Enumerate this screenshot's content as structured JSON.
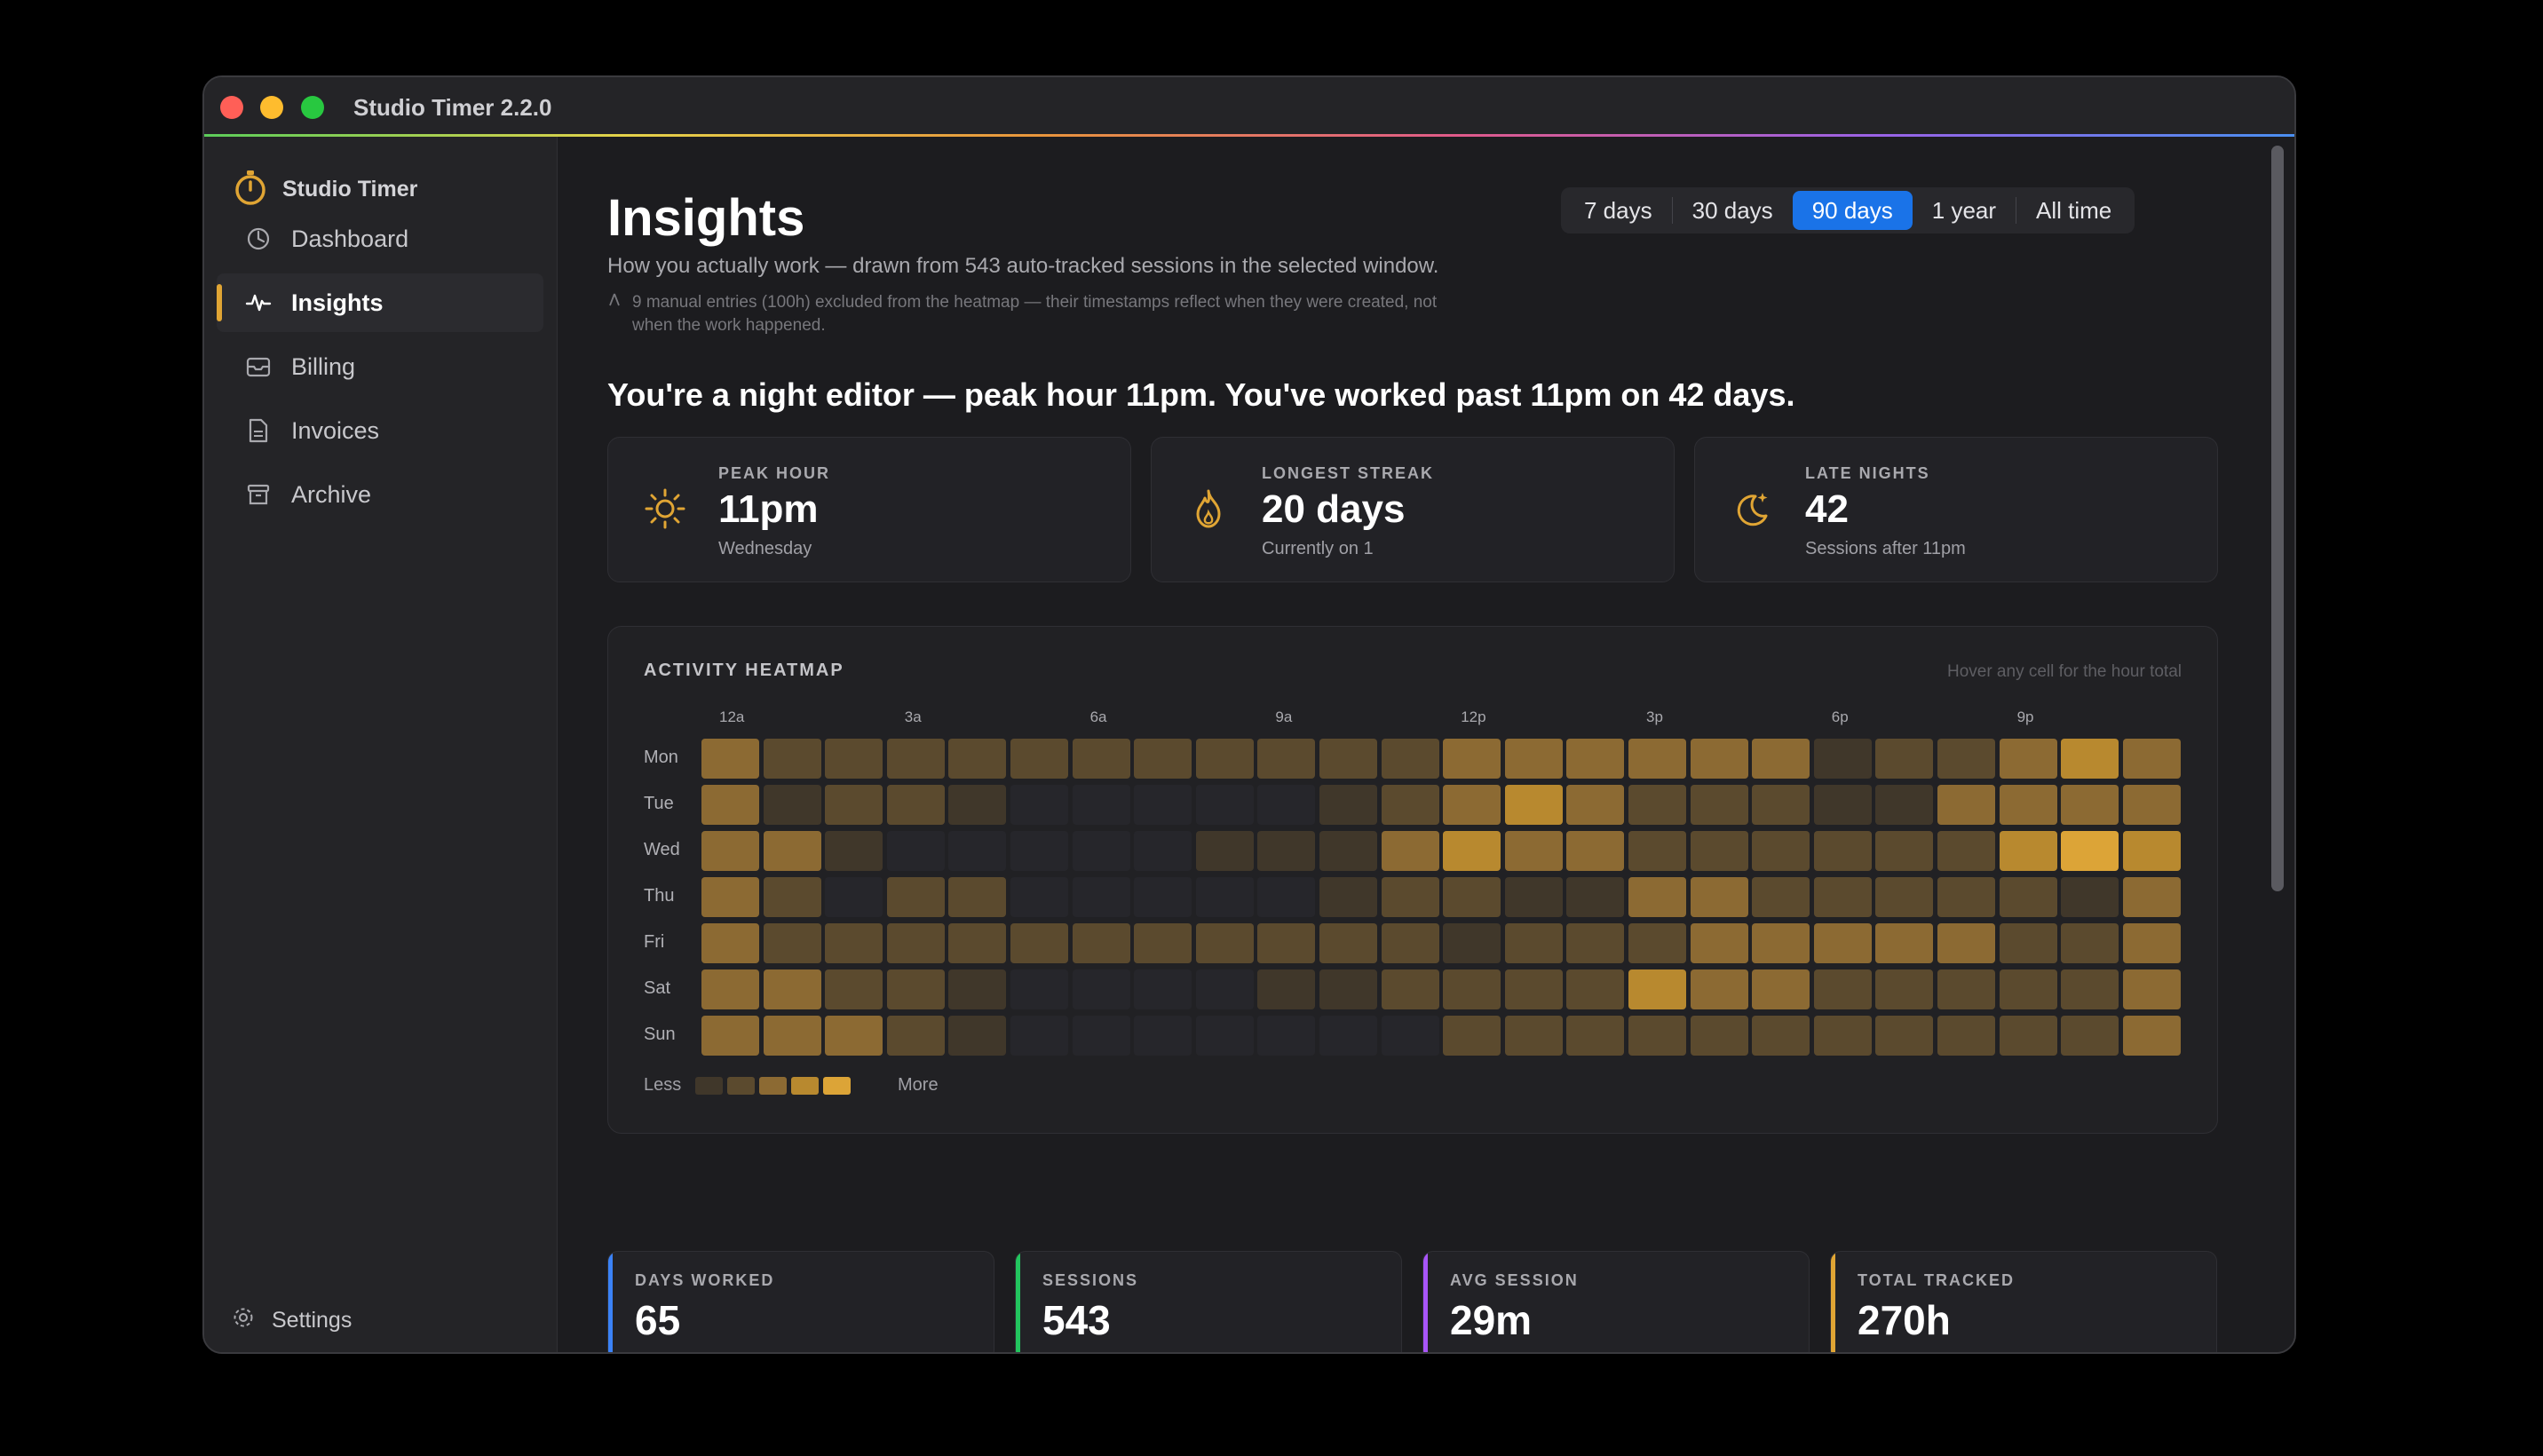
{
  "window": {
    "title": "Studio Timer 2.2.0"
  },
  "sidebar": {
    "brand": "Studio Timer",
    "items": [
      {
        "label": "Dashboard",
        "icon": "dashboard-icon",
        "active": false
      },
      {
        "label": "Insights",
        "icon": "pulse-icon",
        "active": true
      },
      {
        "label": "Billing",
        "icon": "billing-icon",
        "active": false
      },
      {
        "label": "Invoices",
        "icon": "document-icon",
        "active": false
      },
      {
        "label": "Archive",
        "icon": "archive-icon",
        "active": false
      }
    ],
    "settings_label": "Settings"
  },
  "header": {
    "title": "Insights",
    "subtitle": "How you actually work — drawn from 543 auto-tracked sessions in the selected window.",
    "note": "9 manual entries (100h) excluded from the heatmap — their timestamps reflect when they were created, not when the work happened."
  },
  "range": {
    "options": [
      "7 days",
      "30 days",
      "90 days",
      "1 year",
      "All time"
    ],
    "selected": "90 days"
  },
  "headline": "You're a night editor — peak hour 11pm. You've worked past 11pm on 42 days.",
  "stats": [
    {
      "label": "PEAK HOUR",
      "value": "11pm",
      "sub": "Wednesday",
      "icon": "sun-icon"
    },
    {
      "label": "LONGEST STREAK",
      "value": "20 days",
      "sub": "Currently on 1",
      "icon": "flame-icon"
    },
    {
      "label": "LATE NIGHTS",
      "value": "42",
      "sub": "Sessions after 11pm",
      "icon": "moon-icon"
    }
  ],
  "heatmap": {
    "title": "ACTIVITY HEATMAP",
    "hint": "Hover any cell for the hour total",
    "hour_labels": [
      "12a",
      "3a",
      "6a",
      "9a",
      "12p",
      "3p",
      "6p",
      "9p"
    ],
    "days": [
      "Mon",
      "Tue",
      "Wed",
      "Thu",
      "Fri",
      "Sat",
      "Sun"
    ],
    "levels": [
      [
        3,
        2,
        2,
        2,
        2,
        2,
        2,
        2,
        2,
        2,
        2,
        2,
        3,
        3,
        3,
        3,
        3,
        3,
        1,
        2,
        2,
        3,
        4,
        3
      ],
      [
        3,
        1,
        2,
        2,
        1,
        0,
        0,
        0,
        0,
        0,
        1,
        2,
        3,
        4,
        3,
        2,
        2,
        2,
        1,
        1,
        3,
        3,
        3,
        3
      ],
      [
        3,
        3,
        1,
        0,
        0,
        0,
        0,
        0,
        1,
        1,
        1,
        3,
        4,
        3,
        3,
        2,
        2,
        2,
        2,
        2,
        2,
        4,
        5,
        4
      ],
      [
        3,
        2,
        0,
        2,
        2,
        0,
        0,
        0,
        0,
        0,
        1,
        2,
        2,
        1,
        1,
        3,
        3,
        2,
        2,
        2,
        2,
        2,
        1,
        3
      ],
      [
        3,
        2,
        2,
        2,
        2,
        2,
        2,
        2,
        2,
        2,
        2,
        2,
        1,
        2,
        2,
        2,
        3,
        3,
        3,
        3,
        3,
        2,
        2,
        3
      ],
      [
        3,
        3,
        2,
        2,
        1,
        0,
        0,
        0,
        0,
        1,
        1,
        2,
        2,
        2,
        2,
        4,
        3,
        3,
        2,
        2,
        2,
        2,
        2,
        3
      ],
      [
        3,
        3,
        3,
        2,
        1,
        0,
        0,
        0,
        0,
        0,
        0,
        0,
        2,
        2,
        2,
        2,
        2,
        2,
        2,
        2,
        2,
        2,
        2,
        3
      ]
    ],
    "level_colors": [
      "#26262b",
      "#40372a",
      "#5b4a2e",
      "#8c6a33",
      "#b8892f",
      "#dca437"
    ],
    "legend_less": "Less",
    "legend_more": "More"
  },
  "kpis": [
    {
      "label": "DAYS WORKED",
      "value": "65",
      "color": "#3b82f6"
    },
    {
      "label": "SESSIONS",
      "value": "543",
      "color": "#22c55e"
    },
    {
      "label": "AVG SESSION",
      "value": "29m",
      "color": "#a855f7"
    },
    {
      "label": "TOTAL TRACKED",
      "value": "270h",
      "color": "#e0a534"
    }
  ],
  "colors": {
    "accent": "#e0a534",
    "selected": "#1a73e8"
  }
}
